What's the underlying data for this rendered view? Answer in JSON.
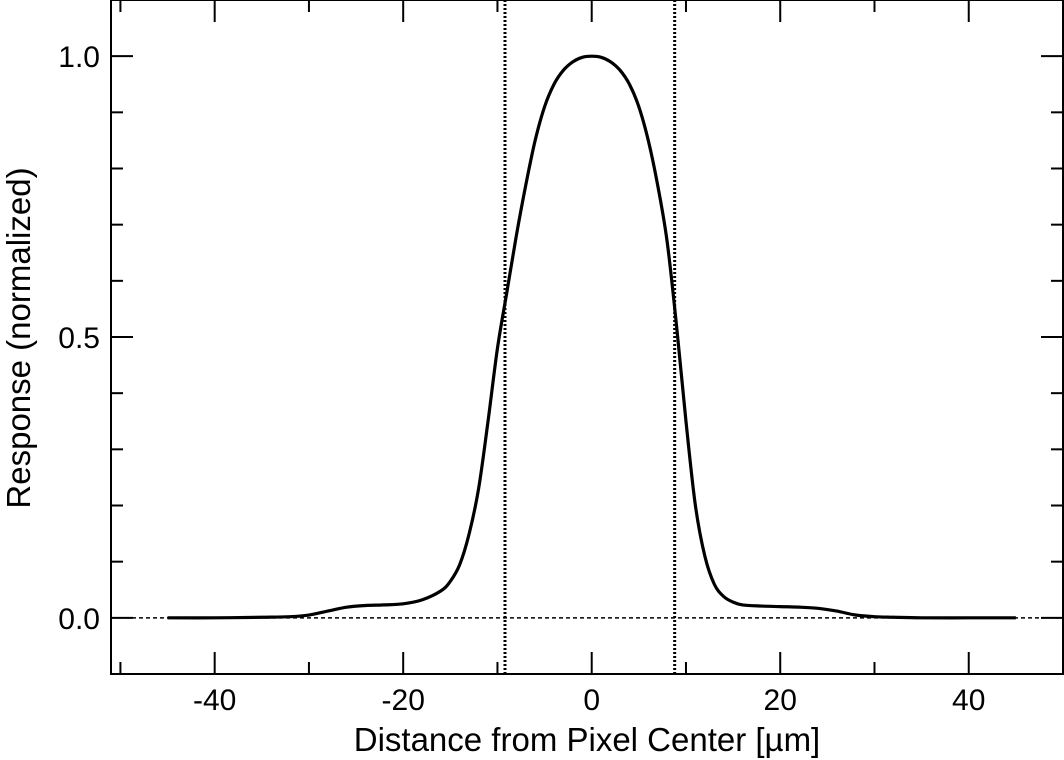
{
  "chart_data": {
    "type": "line",
    "title": "",
    "xlabel": "Distance from Pixel Center [µm]",
    "ylabel": "Response (normalized)",
    "xlim": [
      -51,
      50
    ],
    "ylim": [
      -0.1,
      1.1
    ],
    "x_ticks": [
      -40,
      -20,
      0,
      20,
      40
    ],
    "x_tick_labels": [
      "-40",
      "-20",
      "0",
      "20",
      "40"
    ],
    "y_ticks": [
      0.0,
      0.5,
      1.0
    ],
    "y_tick_labels": [
      "0.0",
      "0.5",
      "1.0"
    ],
    "grid": false,
    "legend": "none",
    "colors": {
      "line": "#000000",
      "axes": "#000000",
      "background": "#ffffff"
    },
    "reference_lines": [
      {
        "orientation": "horizontal",
        "value": 0.0,
        "style": "dashed"
      },
      {
        "orientation": "vertical",
        "value": -9.2,
        "style": "dotted"
      },
      {
        "orientation": "vertical",
        "value": 8.8,
        "style": "dotted"
      }
    ],
    "series": [
      {
        "x": [
          -45,
          -40,
          -35,
          -32,
          -30,
          -28,
          -26,
          -24,
          -22,
          -20,
          -18,
          -16,
          -15,
          -14,
          -13,
          -12,
          -11,
          -10,
          -9,
          -8,
          -7,
          -6,
          -5,
          -4,
          -3,
          -2,
          -1,
          0,
          1,
          2,
          3,
          4,
          5,
          6,
          7,
          8,
          9,
          10,
          11,
          12,
          13,
          14,
          15,
          16,
          18,
          20,
          22,
          24,
          26,
          28,
          30,
          32,
          35,
          40,
          45
        ],
        "y": [
          0.0,
          0.0,
          0.001,
          0.002,
          0.005,
          0.012,
          0.019,
          0.022,
          0.023,
          0.025,
          0.032,
          0.048,
          0.065,
          0.095,
          0.15,
          0.23,
          0.35,
          0.48,
          0.58,
          0.68,
          0.77,
          0.85,
          0.91,
          0.95,
          0.975,
          0.99,
          0.998,
          1.0,
          0.998,
          0.99,
          0.975,
          0.95,
          0.91,
          0.85,
          0.77,
          0.67,
          0.52,
          0.35,
          0.2,
          0.11,
          0.06,
          0.038,
          0.028,
          0.023,
          0.021,
          0.02,
          0.019,
          0.017,
          0.012,
          0.005,
          0.002,
          0.001,
          0.0,
          0.0,
          0.0
        ]
      }
    ]
  }
}
